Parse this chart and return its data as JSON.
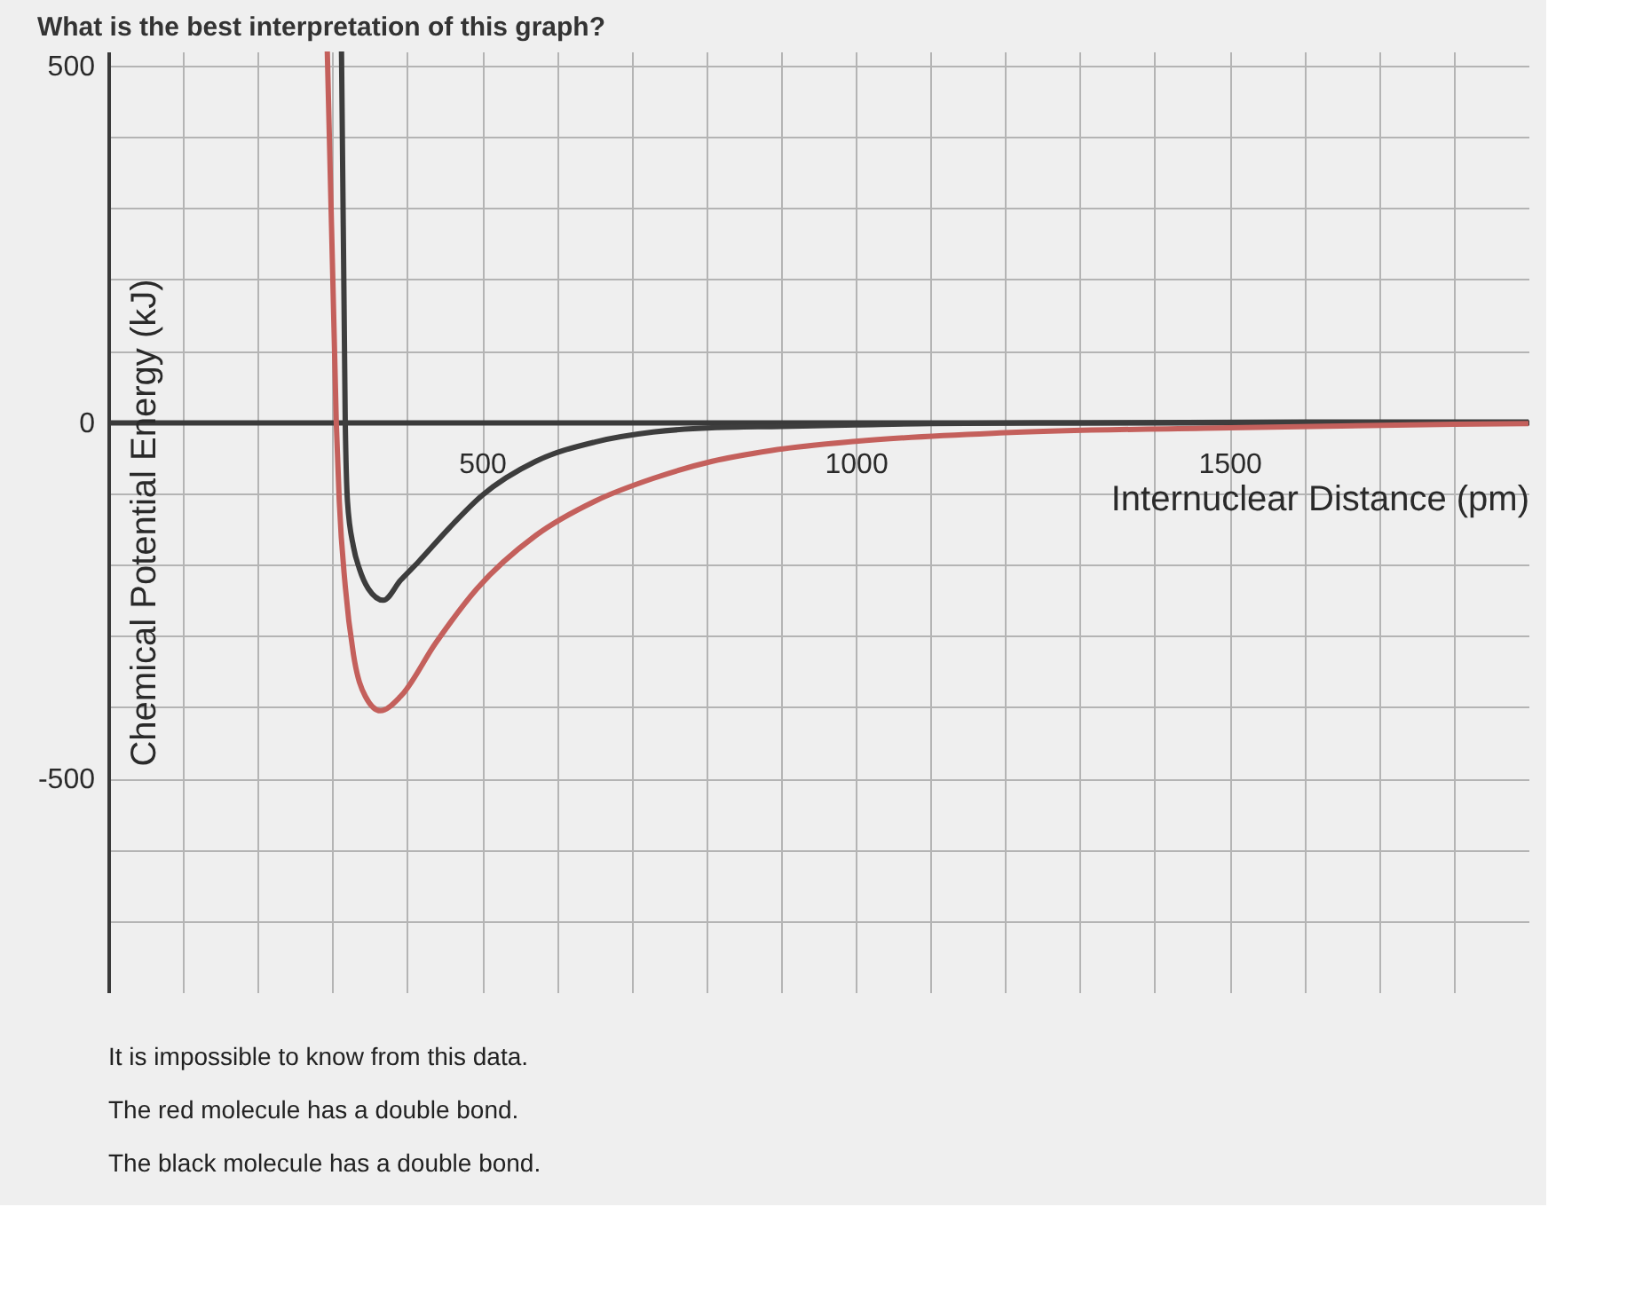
{
  "chart_data": {
    "type": "line",
    "title": "What is the best interpretation of this graph?",
    "xlabel": "Internuclear Distance (pm)",
    "ylabel": "Chemical Potential Energy (kJ)",
    "xlim": [
      0,
      1900
    ],
    "xticks": [
      {
        "value": 100,
        "label": null
      },
      {
        "value": 200,
        "label": null
      },
      {
        "value": 300,
        "label": null
      },
      {
        "value": 400,
        "label": null
      },
      500,
      {
        "value": 600,
        "label": null
      },
      {
        "value": 700,
        "label": null
      },
      {
        "value": 800,
        "label": null
      },
      {
        "value": 900,
        "label": null
      },
      1000,
      {
        "value": 1100,
        "label": null
      },
      {
        "value": 1200,
        "label": null
      },
      {
        "value": 1300,
        "label": null
      },
      {
        "value": 1400,
        "label": null
      },
      1500,
      {
        "value": 1600,
        "label": null
      },
      {
        "value": 1700,
        "label": null
      },
      {
        "value": 1800,
        "label": null
      }
    ],
    "ylim": [
      -800,
      520
    ],
    "yticks": [
      {
        "value": -700,
        "label": null
      },
      {
        "value": -600,
        "label": null
      },
      -500,
      {
        "value": -400,
        "label": null
      },
      {
        "value": -300,
        "label": null
      },
      {
        "value": -200,
        "label": null
      },
      {
        "value": -100,
        "label": null
      },
      0,
      {
        "value": 100,
        "label": null
      },
      {
        "value": 200,
        "label": null
      },
      {
        "value": 300,
        "label": null
      },
      {
        "value": 400,
        "label": null
      },
      500
    ],
    "grid": true,
    "series": [
      {
        "color": "#3d3d3d",
        "x": [
          312,
          317,
          320,
          328,
          336,
          348,
          368,
          391,
          415,
          454,
          500,
          572,
          651,
          729,
          807,
          900,
          1000,
          1100,
          1300,
          1600,
          1900
        ],
        "values": [
          520,
          0,
          -111,
          -175,
          -206,
          -234,
          -250,
          -222,
          -196,
          -151,
          -103,
          -55,
          -28,
          -14,
          -8,
          -6,
          -4,
          -2,
          -1,
          0,
          0
        ]
      },
      {
        "color": "#c4605c",
        "x": [
          293,
          305,
          309,
          317,
          328,
          344,
          364,
          391,
          438,
          493,
          572,
          651,
          729,
          808,
          886,
          1000,
          1200,
          1500,
          1800,
          1900
        ],
        "values": [
          520,
          0,
          -111,
          -230,
          -326,
          -385,
          -405,
          -385,
          -310,
          -234,
          -159,
          -111,
          -79,
          -55,
          -40,
          -27,
          -15,
          -8,
          -3,
          -2
        ]
      }
    ],
    "annotations": [
      "It is impossible to know from this data.",
      "The red molecule has a double bond.",
      "The black molecule has a double bond."
    ]
  }
}
